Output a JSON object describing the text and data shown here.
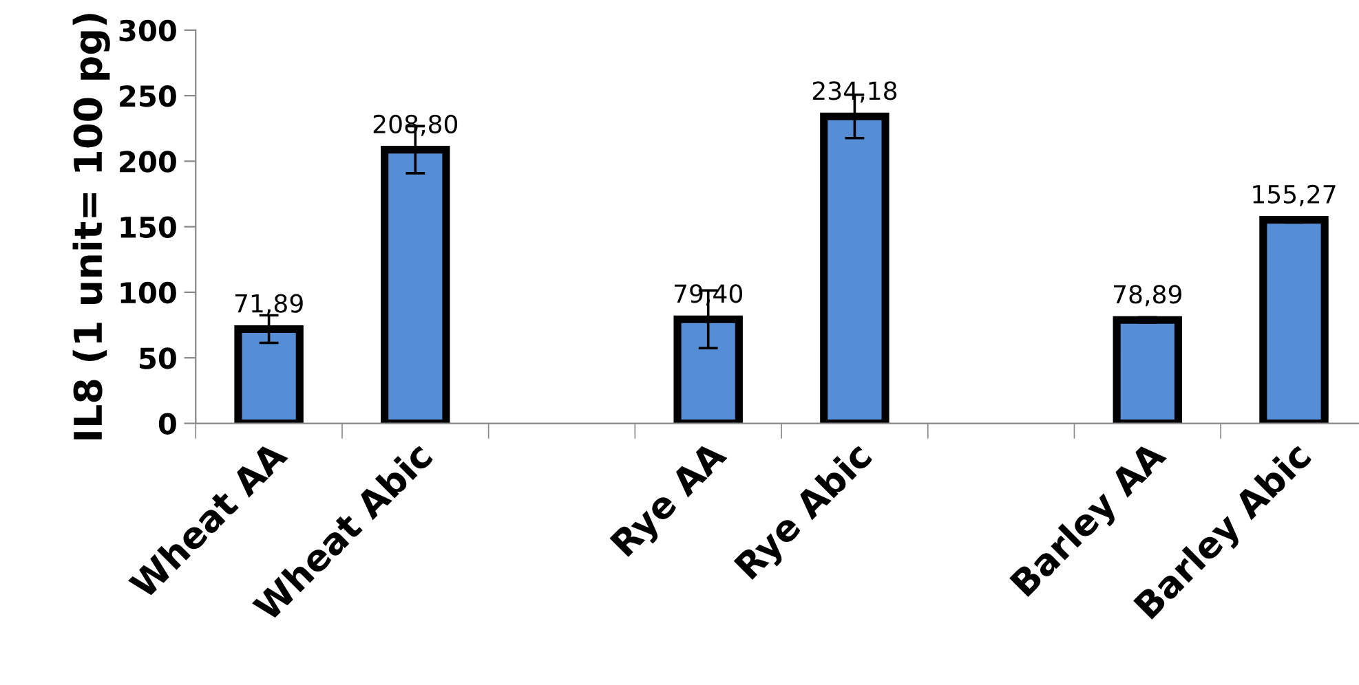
{
  "chart_data": {
    "type": "bar",
    "ylabel": "IL8 (1 unit= 100 pg)",
    "categories": [
      "Wheat AA",
      "Wheat Abic",
      null,
      "Rye AA",
      "Rye Abic",
      null,
      "Barley AA",
      "Barley Abic"
    ],
    "values": [
      71.89,
      208.8,
      null,
      79.4,
      234.18,
      null,
      78.89,
      155.27
    ],
    "errors": [
      10.5,
      18,
      null,
      22,
      16.5,
      null,
      2,
      2
    ],
    "value_labels": [
      "71,89",
      "208,80",
      null,
      "79,40",
      "234,18",
      null,
      "78,89",
      "155,27"
    ],
    "color": "#558ed5",
    "ylim": [
      0,
      300
    ],
    "yticks": [
      0,
      50,
      100,
      150,
      200,
      250,
      300
    ],
    "grid": false,
    "legend": false
  }
}
